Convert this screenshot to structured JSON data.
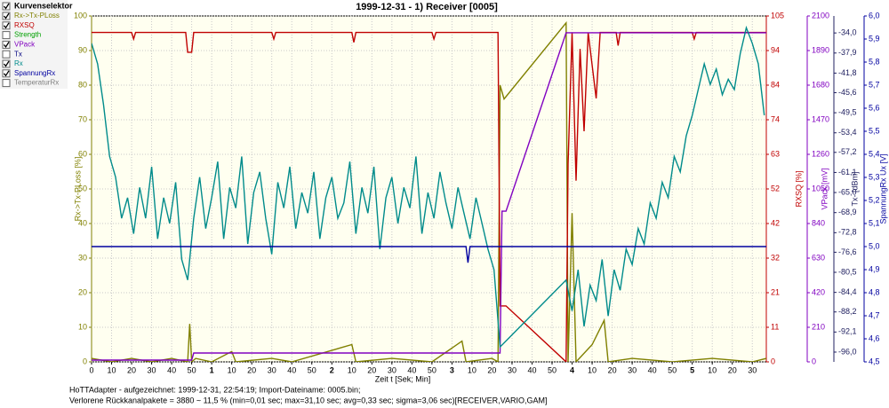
{
  "chart_data": {
    "type": "line",
    "title": "1999-12-31 - 1) Receiver [0005]",
    "legend_title": "Kurvenselektor",
    "legend_title_checked": true,
    "xlabel": "Zeit t [Sek; Min]",
    "xlim": [
      0,
      337
    ],
    "xticks": [
      0,
      10,
      20,
      30,
      40,
      50,
      {
        "value": 60,
        "label": "1"
      },
      {
        "value": 70,
        "label": "10"
      },
      {
        "value": 80,
        "label": "20"
      },
      {
        "value": 90,
        "label": "30"
      },
      {
        "value": 100,
        "label": "40"
      },
      {
        "value": 110,
        "label": "50"
      },
      {
        "value": 120,
        "label": "2"
      },
      {
        "value": 130,
        "label": "10"
      },
      {
        "value": 140,
        "label": "20"
      },
      {
        "value": 150,
        "label": "30"
      },
      {
        "value": 160,
        "label": "40"
      },
      {
        "value": 170,
        "label": "50"
      },
      {
        "value": 180,
        "label": "3"
      },
      {
        "value": 190,
        "label": "10"
      },
      {
        "value": 200,
        "label": "20"
      },
      {
        "value": 210,
        "label": "30"
      },
      {
        "value": 220,
        "label": "40"
      },
      {
        "value": 230,
        "label": "50"
      },
      {
        "value": 240,
        "label": "4"
      },
      {
        "value": 250,
        "label": "10"
      },
      {
        "value": 260,
        "label": "20"
      },
      {
        "value": 270,
        "label": "30"
      },
      {
        "value": 280,
        "label": "40"
      },
      {
        "value": 290,
        "label": "50"
      },
      {
        "value": 300,
        "label": "5"
      },
      {
        "value": 310,
        "label": "10"
      },
      {
        "value": 320,
        "label": "20"
      },
      {
        "value": 330,
        "label": "30"
      }
    ],
    "grid": true,
    "yaxes": [
      {
        "label": "Rx->Tx-PLoss [%]",
        "color": "#808000",
        "lim": [
          0,
          100
        ],
        "ticks": [
          0,
          10,
          20,
          30,
          40,
          50,
          60,
          70,
          80,
          90,
          100
        ]
      },
      {
        "label": "RXSQ [%]",
        "color": "#c00000",
        "lim": [
          0,
          105
        ],
        "ticks": [
          0,
          {
            "value": 10.5,
            "label": "11"
          },
          21,
          {
            "value": 31.5,
            "label": "32"
          },
          42,
          {
            "value": 52.5,
            "label": "52"
          },
          63,
          {
            "value": 73.5,
            "label": "74"
          },
          84,
          {
            "value": 94.5,
            "label": "94"
          },
          105
        ]
      },
      {
        "label": "VPack [mV]",
        "color": "#8000c0",
        "lim": [
          0,
          2100
        ],
        "ticks": [
          0,
          210,
          420,
          630,
          840,
          1050,
          1260,
          1470,
          1680,
          1890,
          2100
        ]
      },
      {
        "label": "Tx- [dBm]",
        "color": "#202060",
        "lim": [
          -97.9,
          -30.7
        ],
        "ticks": [
          {
            "value": -34.0,
            "label": "-34,0"
          },
          {
            "value": -37.9,
            "label": "-37,9"
          },
          {
            "value": -41.8,
            "label": "-41,8"
          },
          {
            "value": -45.6,
            "label": "-45,6"
          },
          {
            "value": -49.5,
            "label": "-49,5"
          },
          {
            "value": -53.4,
            "label": "-53,4"
          },
          {
            "value": -57.2,
            "label": "-57,2"
          },
          {
            "value": -61.1,
            "label": "-61,1"
          },
          {
            "value": -65.0,
            "label": "-65,0"
          },
          {
            "value": -68.9,
            "label": "-68,9"
          },
          {
            "value": -72.8,
            "label": "-72,8"
          },
          {
            "value": -76.6,
            "label": "-76,6"
          },
          {
            "value": -80.5,
            "label": "-80,5"
          },
          {
            "value": -84.4,
            "label": "-84,4"
          },
          {
            "value": -88.2,
            "label": "-88,2"
          },
          {
            "value": -92.1,
            "label": "-92,1"
          },
          {
            "value": -96.0,
            "label": "-96,0"
          }
        ]
      },
      {
        "label": "SpannungRx Ux [V]",
        "color": "#0000a0",
        "lim": [
          4.5,
          6.0
        ],
        "ticks": [
          {
            "value": 4.5,
            "label": "4,5"
          },
          {
            "value": 4.6,
            "label": "4,6"
          },
          {
            "value": 4.7,
            "label": "4,7"
          },
          {
            "value": 4.8,
            "label": "4,8"
          },
          {
            "value": 4.9,
            "label": "4,9"
          },
          {
            "value": 5.0,
            "label": "5,0"
          },
          {
            "value": 5.1,
            "label": "5,1"
          },
          {
            "value": 5.2,
            "label": "5,2"
          },
          {
            "value": 5.3,
            "label": "5,3"
          },
          {
            "value": 5.4,
            "label": "5,4"
          },
          {
            "value": 5.5,
            "label": "5,5"
          },
          {
            "value": 5.6,
            "label": "5,6"
          },
          {
            "value": 5.7,
            "label": "5,7"
          },
          {
            "value": 5.8,
            "label": "5,8"
          },
          {
            "value": 5.9,
            "label": "5,9"
          },
          {
            "value": 6.0,
            "label": "6,0"
          }
        ]
      }
    ],
    "series": [
      {
        "name": "Rx->Tx-PLoss",
        "color": "#808000",
        "checked": true,
        "axis": 0,
        "x": [
          0,
          10,
          20,
          30,
          40,
          48,
          49,
          50,
          52,
          60,
          70,
          72,
          90,
          100,
          130,
          132,
          150,
          170,
          185,
          187,
          200,
          203,
          204,
          206,
          237,
          238,
          240,
          242,
          250,
          256,
          258,
          270,
          290,
          310,
          330,
          337
        ],
        "values": [
          1,
          0,
          1,
          0,
          1,
          0,
          11,
          0,
          1,
          0,
          3,
          0,
          1,
          0,
          5,
          0,
          1,
          0,
          6,
          0,
          1,
          0,
          80,
          76,
          98,
          0,
          43,
          0,
          5,
          12,
          0,
          1,
          0,
          1,
          0,
          1
        ]
      },
      {
        "name": "RXSQ",
        "color": "#c00000",
        "checked": true,
        "axis": 1,
        "x": [
          0,
          20,
          21,
          22,
          47,
          48,
          50,
          51,
          90,
          91,
          92,
          130,
          131,
          132,
          170,
          171,
          172,
          203,
          204,
          207,
          237,
          238,
          240,
          242,
          244,
          246,
          248,
          252,
          254,
          262,
          263,
          264,
          300,
          301,
          302,
          337
        ],
        "values": [
          100,
          100,
          98,
          100,
          100,
          94,
          94,
          100,
          100,
          98,
          100,
          100,
          97,
          100,
          100,
          98,
          100,
          100,
          17,
          17,
          0,
          60,
          100,
          55,
          95,
          70,
          100,
          80,
          100,
          100,
          96,
          100,
          100,
          98,
          100,
          100
        ]
      },
      {
        "name": "Strength",
        "color": "#00a000",
        "checked": false
      },
      {
        "name": "VPack",
        "color": "#8000c0",
        "checked": true,
        "axis": 2,
        "x": [
          0,
          50,
          51,
          204,
          205,
          207,
          237,
          337
        ],
        "values": [
          11,
          11,
          54,
          54,
          915,
          915,
          1998,
          1998
        ]
      },
      {
        "name": "Tx",
        "color": "#000080",
        "checked": false
      },
      {
        "name": "Rx",
        "color": "#008b8b",
        "checked": true,
        "axis": 3,
        "x": [
          0,
          3,
          6,
          9,
          12,
          15,
          18,
          21,
          24,
          27,
          30,
          33,
          36,
          39,
          42,
          45,
          48,
          51,
          54,
          57,
          60,
          63,
          66,
          69,
          72,
          75,
          78,
          81,
          84,
          87,
          90,
          93,
          96,
          99,
          102,
          105,
          108,
          111,
          114,
          117,
          120,
          123,
          126,
          129,
          132,
          135,
          138,
          141,
          144,
          147,
          150,
          153,
          156,
          159,
          162,
          165,
          168,
          171,
          174,
          177,
          180,
          183,
          186,
          189,
          192,
          195,
          198,
          201,
          204,
          237,
          240,
          243,
          246,
          249,
          252,
          255,
          258,
          261,
          264,
          267,
          270,
          273,
          276,
          279,
          282,
          285,
          288,
          291,
          294,
          297,
          300,
          303,
          306,
          309,
          312,
          315,
          318,
          321,
          324,
          327,
          330,
          333,
          336
        ],
        "values": [
          -36,
          -40,
          -48,
          -58,
          -62,
          -70,
          -66,
          -73,
          -64,
          -70,
          -60,
          -74,
          -66,
          -71,
          -63,
          -78,
          -82,
          -70,
          -62,
          -72,
          -66,
          -59,
          -74,
          -64,
          -68,
          -58,
          -75,
          -65,
          -61,
          -70,
          -77,
          -63,
          -68,
          -60,
          -72,
          -65,
          -69,
          -61,
          -74,
          -66,
          -62,
          -70,
          -67,
          -59,
          -73,
          -64,
          -69,
          -60,
          -76,
          -66,
          -62,
          -71,
          -64,
          -68,
          -58,
          -73,
          -65,
          -70,
          -61,
          -67,
          -72,
          -64,
          -69,
          -74,
          -66,
          -71,
          -76,
          -80,
          -95,
          -82,
          -88,
          -80,
          -91,
          -83,
          -86,
          -78,
          -89,
          -80,
          -84,
          -76,
          -79,
          -72,
          -75,
          -67,
          -70,
          -63,
          -66,
          -58,
          -61,
          -54,
          -50,
          -45,
          -40,
          -44,
          -41,
          -46,
          -43,
          -45,
          -38,
          -33,
          -36,
          -40,
          -50
        ]
      },
      {
        "name": "SpannungRx",
        "color": "#0000a0",
        "checked": true,
        "axis": 4,
        "x": [
          0,
          187,
          188,
          189,
          337
        ],
        "values": [
          5.0,
          5.0,
          4.93,
          5.0,
          5.0
        ]
      },
      {
        "name": "TemperaturRx",
        "color": "#808080",
        "checked": false
      }
    ],
    "footer": [
      "HoTTAdapter - aufgezeichnet: 1999-12-31, 22:54:19; Import-Dateiname: 0005.bin;",
      "Verlorene Rückkanalpakete = 3880 ~ 11,5 % (min=0,01 sec; max=31,10 sec; avg=0,33 sec; sigma=3,06 sec)[RECEIVER,VARIO,GAM]"
    ]
  }
}
